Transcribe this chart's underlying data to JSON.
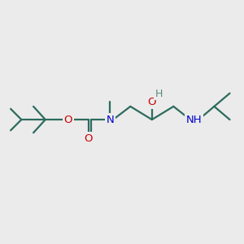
{
  "bg_color": "#ebebeb",
  "bond_color": "#2d6b5e",
  "bond_width": 1.6,
  "atom_colors": {
    "N": "#0000cc",
    "O": "#cc0000",
    "H": "#5a8a80"
  },
  "font_size": 9.5,
  "fig_size": [
    3.0,
    3.0
  ],
  "dpi": 100,
  "xlim": [
    0,
    10
  ],
  "ylim": [
    0,
    10
  ]
}
